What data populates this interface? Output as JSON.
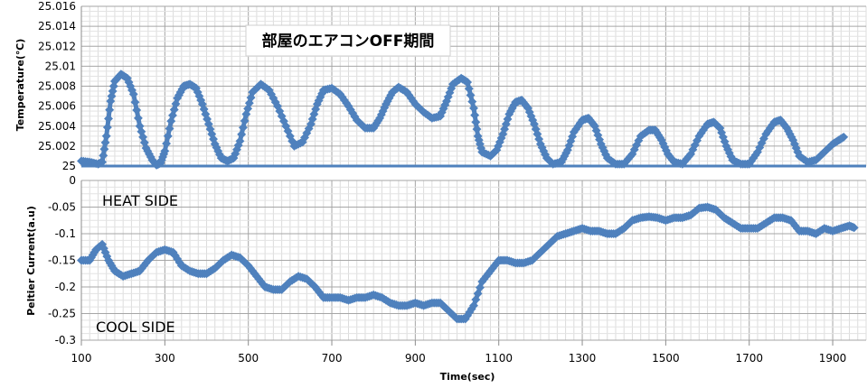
{
  "chart_data": [
    {
      "type": "scatter",
      "title": "部屋のエアコンOFF期間",
      "xlabel": "",
      "ylabel": "Temperature(℃)",
      "xlim": [
        100,
        1980
      ],
      "ylim": [
        25,
        25.016
      ],
      "grid": true,
      "y_ticks": [
        "25",
        "25.002",
        "25.004",
        "25.006",
        "25.008",
        "25.01",
        "25.012",
        "25.014",
        "25.016"
      ],
      "series": [
        {
          "color": "#4f81bd",
          "points": [
            [
              100,
              25.0005
            ],
            [
              120,
              25.0004
            ],
            [
              140,
              25.0002
            ],
            [
              150,
              25.0004
            ],
            [
              160,
              25.003
            ],
            [
              170,
              25.0065
            ],
            [
              180,
              25.0085
            ],
            [
              195,
              25.0092
            ],
            [
              210,
              25.0088
            ],
            [
              225,
              25.0072
            ],
            [
              240,
              25.004
            ],
            [
              255,
              25.0018
            ],
            [
              270,
              25.0006
            ],
            [
              280,
              25.0001
            ],
            [
              290,
              25.0003
            ],
            [
              300,
              25.0015
            ],
            [
              315,
              25.0045
            ],
            [
              330,
              25.0068
            ],
            [
              345,
              25.008
            ],
            [
              360,
              25.0082
            ],
            [
              375,
              25.0078
            ],
            [
              390,
              25.0062
            ],
            [
              405,
              25.0042
            ],
            [
              420,
              25.0022
            ],
            [
              435,
              25.0008
            ],
            [
              450,
              25.0005
            ],
            [
              465,
              25.0008
            ],
            [
              480,
              25.0025
            ],
            [
              495,
              25.0052
            ],
            [
              510,
              25.0074
            ],
            [
              530,
              25.0082
            ],
            [
              550,
              25.0076
            ],
            [
              570,
              25.006
            ],
            [
              590,
              25.004
            ],
            [
              610,
              25.002
            ],
            [
              630,
              25.0024
            ],
            [
              650,
              25.0042
            ],
            [
              665,
              25.0062
            ],
            [
              680,
              25.0076
            ],
            [
              700,
              25.0078
            ],
            [
              720,
              25.0072
            ],
            [
              740,
              25.006
            ],
            [
              760,
              25.0046
            ],
            [
              780,
              25.0038
            ],
            [
              800,
              25.0038
            ],
            [
              815,
              25.0048
            ],
            [
              830,
              25.0062
            ],
            [
              845,
              25.0074
            ],
            [
              860,
              25.0079
            ],
            [
              880,
              25.0074
            ],
            [
              900,
              25.0062
            ],
            [
              920,
              25.0054
            ],
            [
              940,
              25.0048
            ],
            [
              960,
              25.005
            ],
            [
              975,
              25.0065
            ],
            [
              990,
              25.0082
            ],
            [
              1010,
              25.0088
            ],
            [
              1025,
              25.0084
            ],
            [
              1040,
              25.0058
            ],
            [
              1050,
              25.003
            ],
            [
              1060,
              25.0014
            ],
            [
              1080,
              25.001
            ],
            [
              1095,
              25.0016
            ],
            [
              1110,
              25.0032
            ],
            [
              1125,
              25.0052
            ],
            [
              1140,
              25.0064
            ],
            [
              1155,
              25.0066
            ],
            [
              1170,
              25.0058
            ],
            [
              1185,
              25.0042
            ],
            [
              1200,
              25.0022
            ],
            [
              1215,
              25.0008
            ],
            [
              1230,
              25.0002
            ],
            [
              1250,
              25.0004
            ],
            [
              1265,
              25.0016
            ],
            [
              1280,
              25.0034
            ],
            [
              1300,
              25.0046
            ],
            [
              1315,
              25.0048
            ],
            [
              1330,
              25.004
            ],
            [
              1345,
              25.0022
            ],
            [
              1360,
              25.0008
            ],
            [
              1380,
              25.0002
            ],
            [
              1400,
              25.0002
            ],
            [
              1420,
              25.0012
            ],
            [
              1440,
              25.003
            ],
            [
              1460,
              25.0036
            ],
            [
              1475,
              25.0036
            ],
            [
              1490,
              25.0026
            ],
            [
              1505,
              25.0012
            ],
            [
              1520,
              25.0004
            ],
            [
              1540,
              25.0002
            ],
            [
              1560,
              25.0012
            ],
            [
              1580,
              25.003
            ],
            [
              1600,
              25.0042
            ],
            [
              1615,
              25.0044
            ],
            [
              1630,
              25.0038
            ],
            [
              1645,
              25.002
            ],
            [
              1660,
              25.0006
            ],
            [
              1680,
              25.0002
            ],
            [
              1700,
              25.0002
            ],
            [
              1720,
              25.0014
            ],
            [
              1740,
              25.0032
            ],
            [
              1760,
              25.0044
            ],
            [
              1775,
              25.0046
            ],
            [
              1790,
              25.0038
            ],
            [
              1805,
              25.0026
            ],
            [
              1820,
              25.001
            ],
            [
              1840,
              25.0004
            ],
            [
              1860,
              25.0006
            ],
            [
              1880,
              25.0014
            ],
            [
              1900,
              25.0022
            ],
            [
              1915,
              25.0026
            ],
            [
              1930,
              25.003
            ]
          ]
        }
      ]
    },
    {
      "type": "scatter",
      "title": "",
      "xlabel": "Time(sec)",
      "ylabel": "Peltier Current(a.u)",
      "xlim": [
        100,
        1980
      ],
      "ylim": [
        -0.3,
        0
      ],
      "grid": true,
      "x_ticks": [
        "100",
        "300",
        "500",
        "700",
        "900",
        "1100",
        "1300",
        "1500",
        "1700",
        "1900"
      ],
      "y_ticks": [
        "0",
        "-0.05",
        "-0.1",
        "-0.15",
        "-0.2",
        "-0.25",
        "-0.3"
      ],
      "annotations": [
        "HEAT SIDE",
        "COOL SIDE"
      ],
      "series": [
        {
          "color": "#4f81bd",
          "points": [
            [
              100,
              -0.15
            ],
            [
              120,
              -0.15
            ],
            [
              135,
              -0.13
            ],
            [
              150,
              -0.12
            ],
            [
              165,
              -0.15
            ],
            [
              180,
              -0.17
            ],
            [
              200,
              -0.18
            ],
            [
              220,
              -0.175
            ],
            [
              240,
              -0.17
            ],
            [
              260,
              -0.15
            ],
            [
              280,
              -0.135
            ],
            [
              300,
              -0.13
            ],
            [
              320,
              -0.135
            ],
            [
              340,
              -0.16
            ],
            [
              360,
              -0.17
            ],
            [
              380,
              -0.175
            ],
            [
              400,
              -0.175
            ],
            [
              420,
              -0.165
            ],
            [
              440,
              -0.15
            ],
            [
              460,
              -0.14
            ],
            [
              480,
              -0.145
            ],
            [
              500,
              -0.16
            ],
            [
              520,
              -0.18
            ],
            [
              540,
              -0.2
            ],
            [
              560,
              -0.205
            ],
            [
              580,
              -0.205
            ],
            [
              600,
              -0.19
            ],
            [
              620,
              -0.18
            ],
            [
              640,
              -0.185
            ],
            [
              660,
              -0.2
            ],
            [
              680,
              -0.22
            ],
            [
              700,
              -0.22
            ],
            [
              720,
              -0.22
            ],
            [
              740,
              -0.225
            ],
            [
              760,
              -0.22
            ],
            [
              780,
              -0.22
            ],
            [
              800,
              -0.215
            ],
            [
              820,
              -0.22
            ],
            [
              840,
              -0.23
            ],
            [
              860,
              -0.235
            ],
            [
              880,
              -0.235
            ],
            [
              900,
              -0.23
            ],
            [
              920,
              -0.235
            ],
            [
              940,
              -0.23
            ],
            [
              960,
              -0.23
            ],
            [
              980,
              -0.245
            ],
            [
              1000,
              -0.26
            ],
            [
              1020,
              -0.26
            ],
            [
              1040,
              -0.235
            ],
            [
              1060,
              -0.19
            ],
            [
              1080,
              -0.17
            ],
            [
              1100,
              -0.15
            ],
            [
              1120,
              -0.15
            ],
            [
              1140,
              -0.155
            ],
            [
              1160,
              -0.155
            ],
            [
              1180,
              -0.15
            ],
            [
              1200,
              -0.135
            ],
            [
              1220,
              -0.12
            ],
            [
              1240,
              -0.105
            ],
            [
              1260,
              -0.1
            ],
            [
              1280,
              -0.095
            ],
            [
              1300,
              -0.09
            ],
            [
              1320,
              -0.095
            ],
            [
              1340,
              -0.095
            ],
            [
              1360,
              -0.1
            ],
            [
              1380,
              -0.1
            ],
            [
              1400,
              -0.09
            ],
            [
              1420,
              -0.075
            ],
            [
              1440,
              -0.07
            ],
            [
              1460,
              -0.068
            ],
            [
              1480,
              -0.07
            ],
            [
              1500,
              -0.075
            ],
            [
              1520,
              -0.07
            ],
            [
              1540,
              -0.07
            ],
            [
              1560,
              -0.065
            ],
            [
              1580,
              -0.052
            ],
            [
              1600,
              -0.05
            ],
            [
              1620,
              -0.055
            ],
            [
              1640,
              -0.07
            ],
            [
              1660,
              -0.08
            ],
            [
              1680,
              -0.09
            ],
            [
              1700,
              -0.09
            ],
            [
              1720,
              -0.09
            ],
            [
              1740,
              -0.08
            ],
            [
              1760,
              -0.07
            ],
            [
              1780,
              -0.07
            ],
            [
              1800,
              -0.075
            ],
            [
              1820,
              -0.095
            ],
            [
              1840,
              -0.095
            ],
            [
              1860,
              -0.1
            ],
            [
              1880,
              -0.09
            ],
            [
              1900,
              -0.095
            ],
            [
              1920,
              -0.09
            ],
            [
              1940,
              -0.085
            ],
            [
              1955,
              -0.09
            ]
          ]
        }
      ]
    }
  ]
}
